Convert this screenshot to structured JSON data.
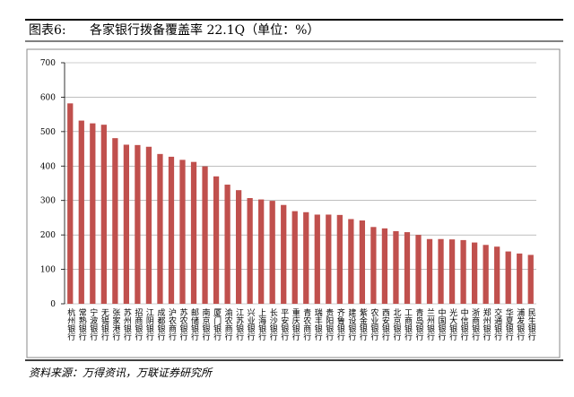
{
  "chart_data": {
    "type": "bar",
    "title_prefix": "图表6:",
    "title": "各家银行拨备覆盖率 22.1Q（单位：%）",
    "source": "资料来源：万得资讯，万联证券研究所",
    "categories": [
      "杭州银行",
      "常熟银行",
      "宁波银行",
      "无锡银行",
      "张家港行",
      "苏州银行",
      "招商银行",
      "江阴银行",
      "成都银行",
      "沪农商行",
      "苏农银行",
      "邮储银行",
      "南京银行",
      "厦门银行",
      "渝农商行",
      "江苏银行",
      "兴业银行",
      "上海银行",
      "长沙银行",
      "平安银行",
      "重庆银行",
      "青农商行",
      "瑞丰银行",
      "贵阳银行",
      "齐鲁银行",
      "建设银行",
      "紫金银行",
      "农业银行",
      "西安银行",
      "北京银行",
      "工商银行",
      "青岛银行",
      "兰州银行",
      "中国银行",
      "光大银行",
      "中信银行",
      "浙商银行",
      "郑州银行",
      "交通银行",
      "华夏银行",
      "浦发银行",
      "民生银行"
    ],
    "values": [
      582,
      532,
      524,
      520,
      481,
      462,
      461,
      456,
      435,
      427,
      418,
      412,
      399,
      370,
      346,
      330,
      307,
      303,
      299,
      287,
      269,
      266,
      259,
      259,
      258,
      246,
      242,
      223,
      219,
      211,
      208,
      200,
      188,
      188,
      187,
      185,
      178,
      171,
      166,
      152,
      146,
      142
    ],
    "color": "#c0504d",
    "ylim": [
      0,
      700
    ],
    "yticks": [
      0,
      100,
      200,
      300,
      400,
      500,
      600,
      700
    ],
    "grid": true
  }
}
